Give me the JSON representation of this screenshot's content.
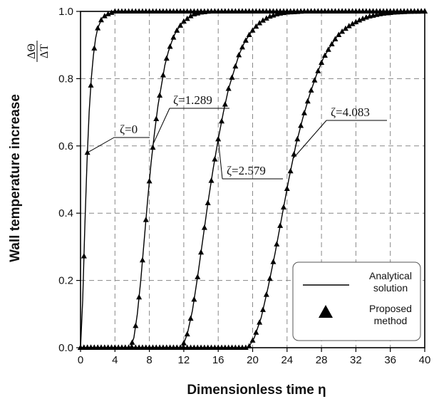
{
  "chart_data": {
    "type": "line",
    "title": "",
    "xlabel": "Dimensionless time η",
    "ylabel": "Wall temperature increase",
    "ylabel_fraction": {
      "numerator": "ΔΘ",
      "denominator": "ΔT"
    },
    "xlim": [
      0,
      40
    ],
    "ylim": [
      0,
      1.0
    ],
    "xticks": [
      0,
      4,
      8,
      12,
      16,
      20,
      24,
      28,
      32,
      36,
      40
    ],
    "yticks": [
      0.0,
      0.2,
      0.4,
      0.6,
      0.8,
      1.0
    ],
    "ytick_labels": [
      "0.0",
      "0.2",
      "0.4",
      "0.6",
      "0.8",
      "1.0"
    ],
    "grid": true,
    "legend_position": "bottom-right",
    "legend": [
      {
        "label_line1": "Analytical",
        "label_line2": "solution",
        "marker": "line"
      },
      {
        "label_line1": "Proposed",
        "label_line2": "method",
        "marker": "triangle"
      }
    ],
    "series": [
      {
        "label": "ζ=0",
        "x": [
          0,
          0.25,
          0.5,
          0.75,
          1,
          1.25,
          1.5,
          1.75,
          2,
          2.5,
          3,
          3.5,
          4,
          5,
          6,
          7,
          8,
          40
        ],
        "y": [
          0.0,
          0.14,
          0.36,
          0.55,
          0.7,
          0.8,
          0.87,
          0.92,
          0.95,
          0.98,
          0.99,
          0.995,
          1.0,
          1.0,
          1.0,
          1.0,
          1.0,
          1.0
        ]
      },
      {
        "label": "ζ=1.289",
        "x": [
          0,
          5,
          5.8,
          6.2,
          6.6,
          7,
          7.4,
          7.8,
          8.2,
          8.6,
          9,
          9.4,
          9.8,
          10.2,
          10.6,
          11,
          11.5,
          12,
          12.5,
          13,
          14,
          15,
          40
        ],
        "y": [
          0.0,
          0.0,
          0.0,
          0.03,
          0.1,
          0.2,
          0.32,
          0.44,
          0.55,
          0.64,
          0.72,
          0.78,
          0.84,
          0.88,
          0.91,
          0.935,
          0.955,
          0.97,
          0.98,
          0.99,
          0.997,
          1.0,
          1.0
        ]
      },
      {
        "label": "ζ=2.579",
        "x": [
          0,
          11,
          11.8,
          12.4,
          13,
          13.6,
          14.2,
          14.8,
          15.4,
          16,
          16.6,
          17.2,
          17.8,
          18.4,
          19,
          19.6,
          20.2,
          21,
          22,
          23,
          24,
          26,
          40
        ],
        "y": [
          0.0,
          0.0,
          0.0,
          0.04,
          0.11,
          0.21,
          0.32,
          0.43,
          0.53,
          0.62,
          0.7,
          0.77,
          0.82,
          0.87,
          0.905,
          0.93,
          0.95,
          0.97,
          0.985,
          0.993,
          0.997,
          1.0,
          1.0
        ]
      },
      {
        "label": "ζ=4.083",
        "x": [
          0,
          18,
          19.5,
          20.2,
          21,
          21.8,
          22.6,
          23.4,
          24.2,
          25,
          25.8,
          26.6,
          27.4,
          28.2,
          29,
          29.8,
          30.6,
          31.4,
          32.5,
          33.5,
          35,
          36.5,
          38,
          40
        ],
        "y": [
          0.0,
          0.0,
          0.0,
          0.03,
          0.09,
          0.18,
          0.28,
          0.39,
          0.5,
          0.6,
          0.68,
          0.75,
          0.81,
          0.86,
          0.895,
          0.925,
          0.945,
          0.96,
          0.975,
          0.985,
          0.993,
          0.997,
          0.999,
          1.0
        ]
      }
    ],
    "annotations": [
      {
        "text": "ζ=0",
        "series": 0
      },
      {
        "text": "ζ=1.289",
        "series": 1
      },
      {
        "text": "ζ=2.579",
        "series": 2
      },
      {
        "text": "ζ=4.083",
        "series": 3
      }
    ]
  }
}
